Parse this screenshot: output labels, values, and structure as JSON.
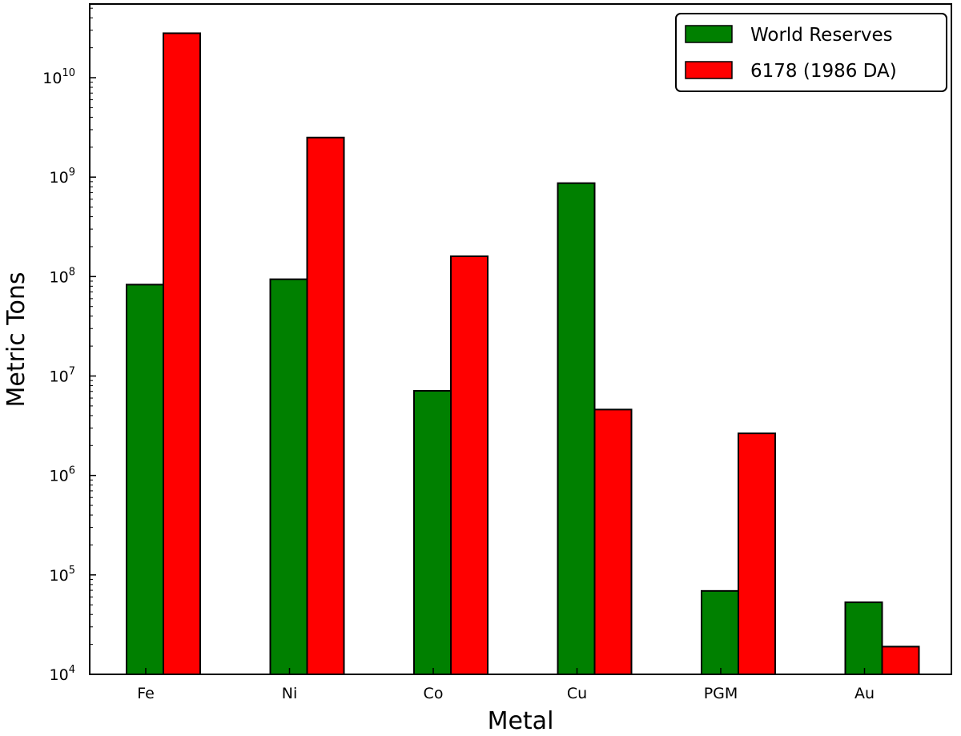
{
  "chart_data": {
    "type": "bar",
    "xlabel": "Metal",
    "ylabel": "Metric Tons",
    "yscale": "log",
    "ylim": [
      10000,
      50000000000
    ],
    "yticks": [
      {
        "value": 10000,
        "base": "10",
        "exp": "4"
      },
      {
        "value": 100000,
        "base": "10",
        "exp": "5"
      },
      {
        "value": 1000000,
        "base": "10",
        "exp": "6"
      },
      {
        "value": 10000000,
        "base": "10",
        "exp": "7"
      },
      {
        "value": 100000000,
        "base": "10",
        "exp": "8"
      },
      {
        "value": 1000000000,
        "base": "10",
        "exp": "9"
      },
      {
        "value": 10000000000,
        "base": "10",
        "exp": "10"
      }
    ],
    "categories": [
      "Fe",
      "Ni",
      "Co",
      "Cu",
      "PGM",
      "Au"
    ],
    "series": [
      {
        "name": "World Reserves",
        "color": "#008000",
        "values": [
          83000000,
          94000000,
          7100000,
          870000000,
          69000,
          53000
        ]
      },
      {
        "name": "6178 (1986 DA)",
        "color": "#ff0000",
        "values": [
          28000000000,
          2500000000,
          160000000,
          4600000,
          2650000,
          19000
        ]
      }
    ],
    "legend": {
      "position": "top-right"
    },
    "grid": false
  }
}
